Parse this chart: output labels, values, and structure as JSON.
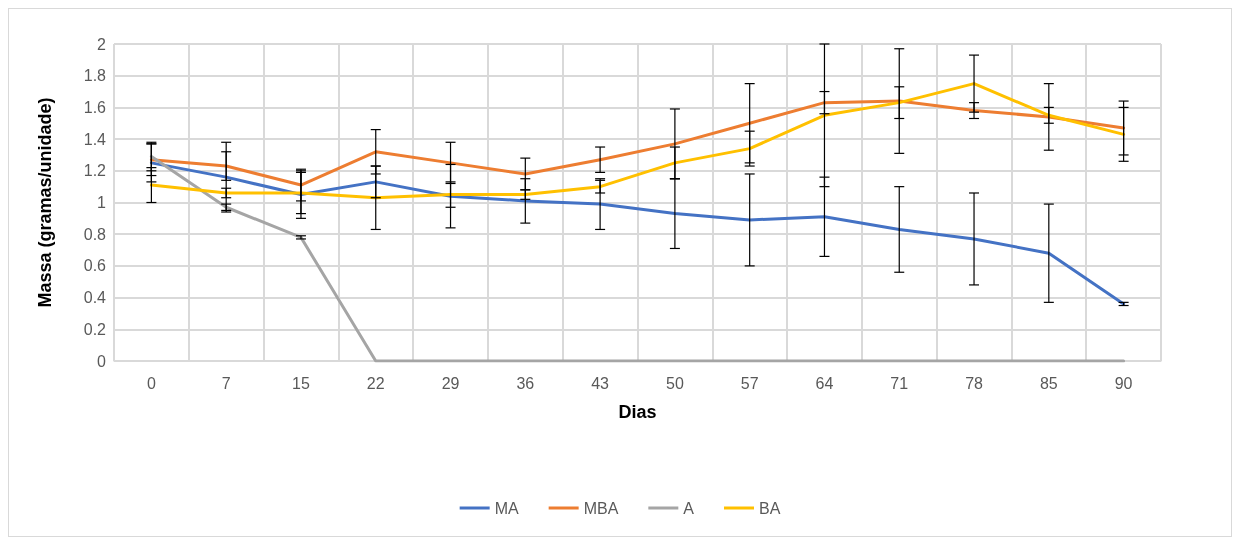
{
  "chart_data": {
    "type": "line",
    "xlabel": "Dias",
    "ylabel": "Massa (gramas/unidade)",
    "categories": [
      "0",
      "7",
      "15",
      "22",
      "29",
      "36",
      "43",
      "50",
      "57",
      "64",
      "71",
      "78",
      "85",
      "90"
    ],
    "ylim": [
      0,
      2
    ],
    "yticks": [
      0,
      0.2,
      0.4,
      0.6,
      0.8,
      1,
      1.2,
      1.4,
      1.6,
      1.8,
      2
    ],
    "grid": true,
    "legend": "bottom",
    "marker": "none",
    "line_style": "solid",
    "series": [
      {
        "name": "MA",
        "color": "#4472c4",
        "values": [
          1.25,
          1.16,
          1.05,
          1.13,
          1.04,
          1.01,
          0.99,
          0.93,
          0.89,
          0.91,
          0.83,
          0.77,
          0.68,
          0.36
        ],
        "errors": [
          0.12,
          0.22,
          0.15,
          0.1,
          0.2,
          0.14,
          0.16,
          0.22,
          0.29,
          0.25,
          0.27,
          0.29,
          0.31,
          0.01
        ]
      },
      {
        "name": "MBA",
        "color": "#ed7d31",
        "values": [
          1.27,
          1.23,
          1.11,
          1.32,
          1.25,
          1.18,
          1.27,
          1.37,
          1.5,
          1.63,
          1.64,
          1.58,
          1.54,
          1.47
        ],
        "errors": [
          0.1,
          0.09,
          0.1,
          0.14,
          0.13,
          0.1,
          0.08,
          0.22,
          0.25,
          0.07,
          0.33,
          0.05,
          0.21,
          0.17
        ]
      },
      {
        "name": "A",
        "color": "#a5a5a5",
        "values": [
          1.29,
          0.97,
          0.78,
          0,
          0,
          0,
          0,
          0,
          0,
          0,
          0,
          0,
          0,
          0
        ],
        "errors": [
          0.09,
          0.02,
          0.01,
          null,
          null,
          null,
          null,
          null,
          null,
          null,
          null,
          null,
          null,
          null
        ]
      },
      {
        "name": "BA",
        "color": "#ffc000",
        "values": [
          1.11,
          1.06,
          1.06,
          1.03,
          1.05,
          1.05,
          1.1,
          1.25,
          1.34,
          1.55,
          1.63,
          1.75,
          1.55,
          1.43
        ],
        "errors": [
          0.11,
          0.03,
          0.13,
          0.2,
          0.08,
          0.03,
          0.04,
          0.1,
          0.11,
          0.45,
          0.1,
          0.18,
          0.05,
          0.17
        ]
      }
    ]
  }
}
